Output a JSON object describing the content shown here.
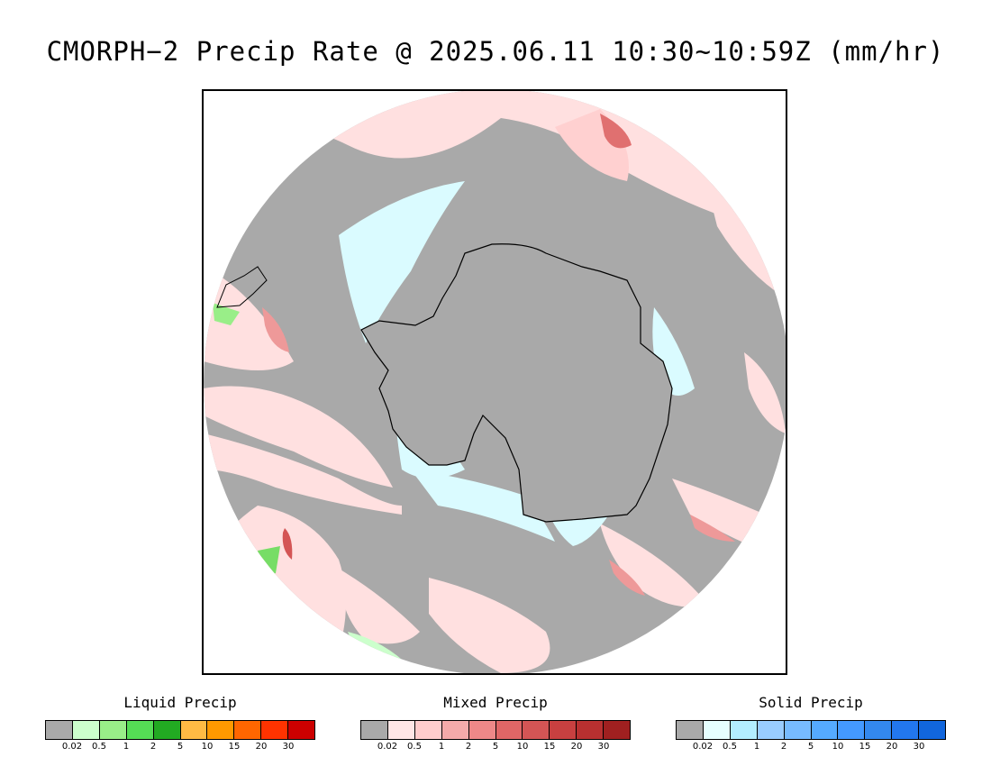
{
  "title": "CMORPH−2 Precip Rate @ 2025.06.11 10:30~10:59Z (mm/hr)",
  "map": {
    "projection": "south-polar-stereographic",
    "background_color": "#a9a9a9",
    "coastline_color": "#000000",
    "icons": [
      "antarctica-coastline",
      "south-america-coastline"
    ]
  },
  "legends": [
    {
      "title": "Liquid Precip",
      "tick_labels": [
        "0.02",
        "0.5",
        "1",
        "2",
        "5",
        "10",
        "15",
        "20",
        "30"
      ],
      "colors": [
        "#a9a9a9",
        "#ccffcc",
        "#99ee88",
        "#55dd55",
        "#22aa22",
        "#ffbb44",
        "#ff9900",
        "#ff6600",
        "#ff3300",
        "#cc0000"
      ]
    },
    {
      "title": "Mixed Precip",
      "tick_labels": [
        "0.02",
        "0.5",
        "1",
        "2",
        "5",
        "10",
        "15",
        "20",
        "30"
      ],
      "colors": [
        "#a9a9a9",
        "#ffe6e6",
        "#ffcccc",
        "#f4aaaa",
        "#ee8888",
        "#e06666",
        "#d45555",
        "#c84040",
        "#b83030",
        "#a02020"
      ]
    },
    {
      "title": "Solid Precip",
      "tick_labels": [
        "0.02",
        "0.5",
        "1",
        "2",
        "5",
        "10",
        "15",
        "20",
        "30"
      ],
      "colors": [
        "#a9a9a9",
        "#e6ffff",
        "#b3eeff",
        "#99ccff",
        "#77bbff",
        "#55aaff",
        "#4499ff",
        "#3388ee",
        "#2277ee",
        "#1166dd"
      ]
    }
  ]
}
